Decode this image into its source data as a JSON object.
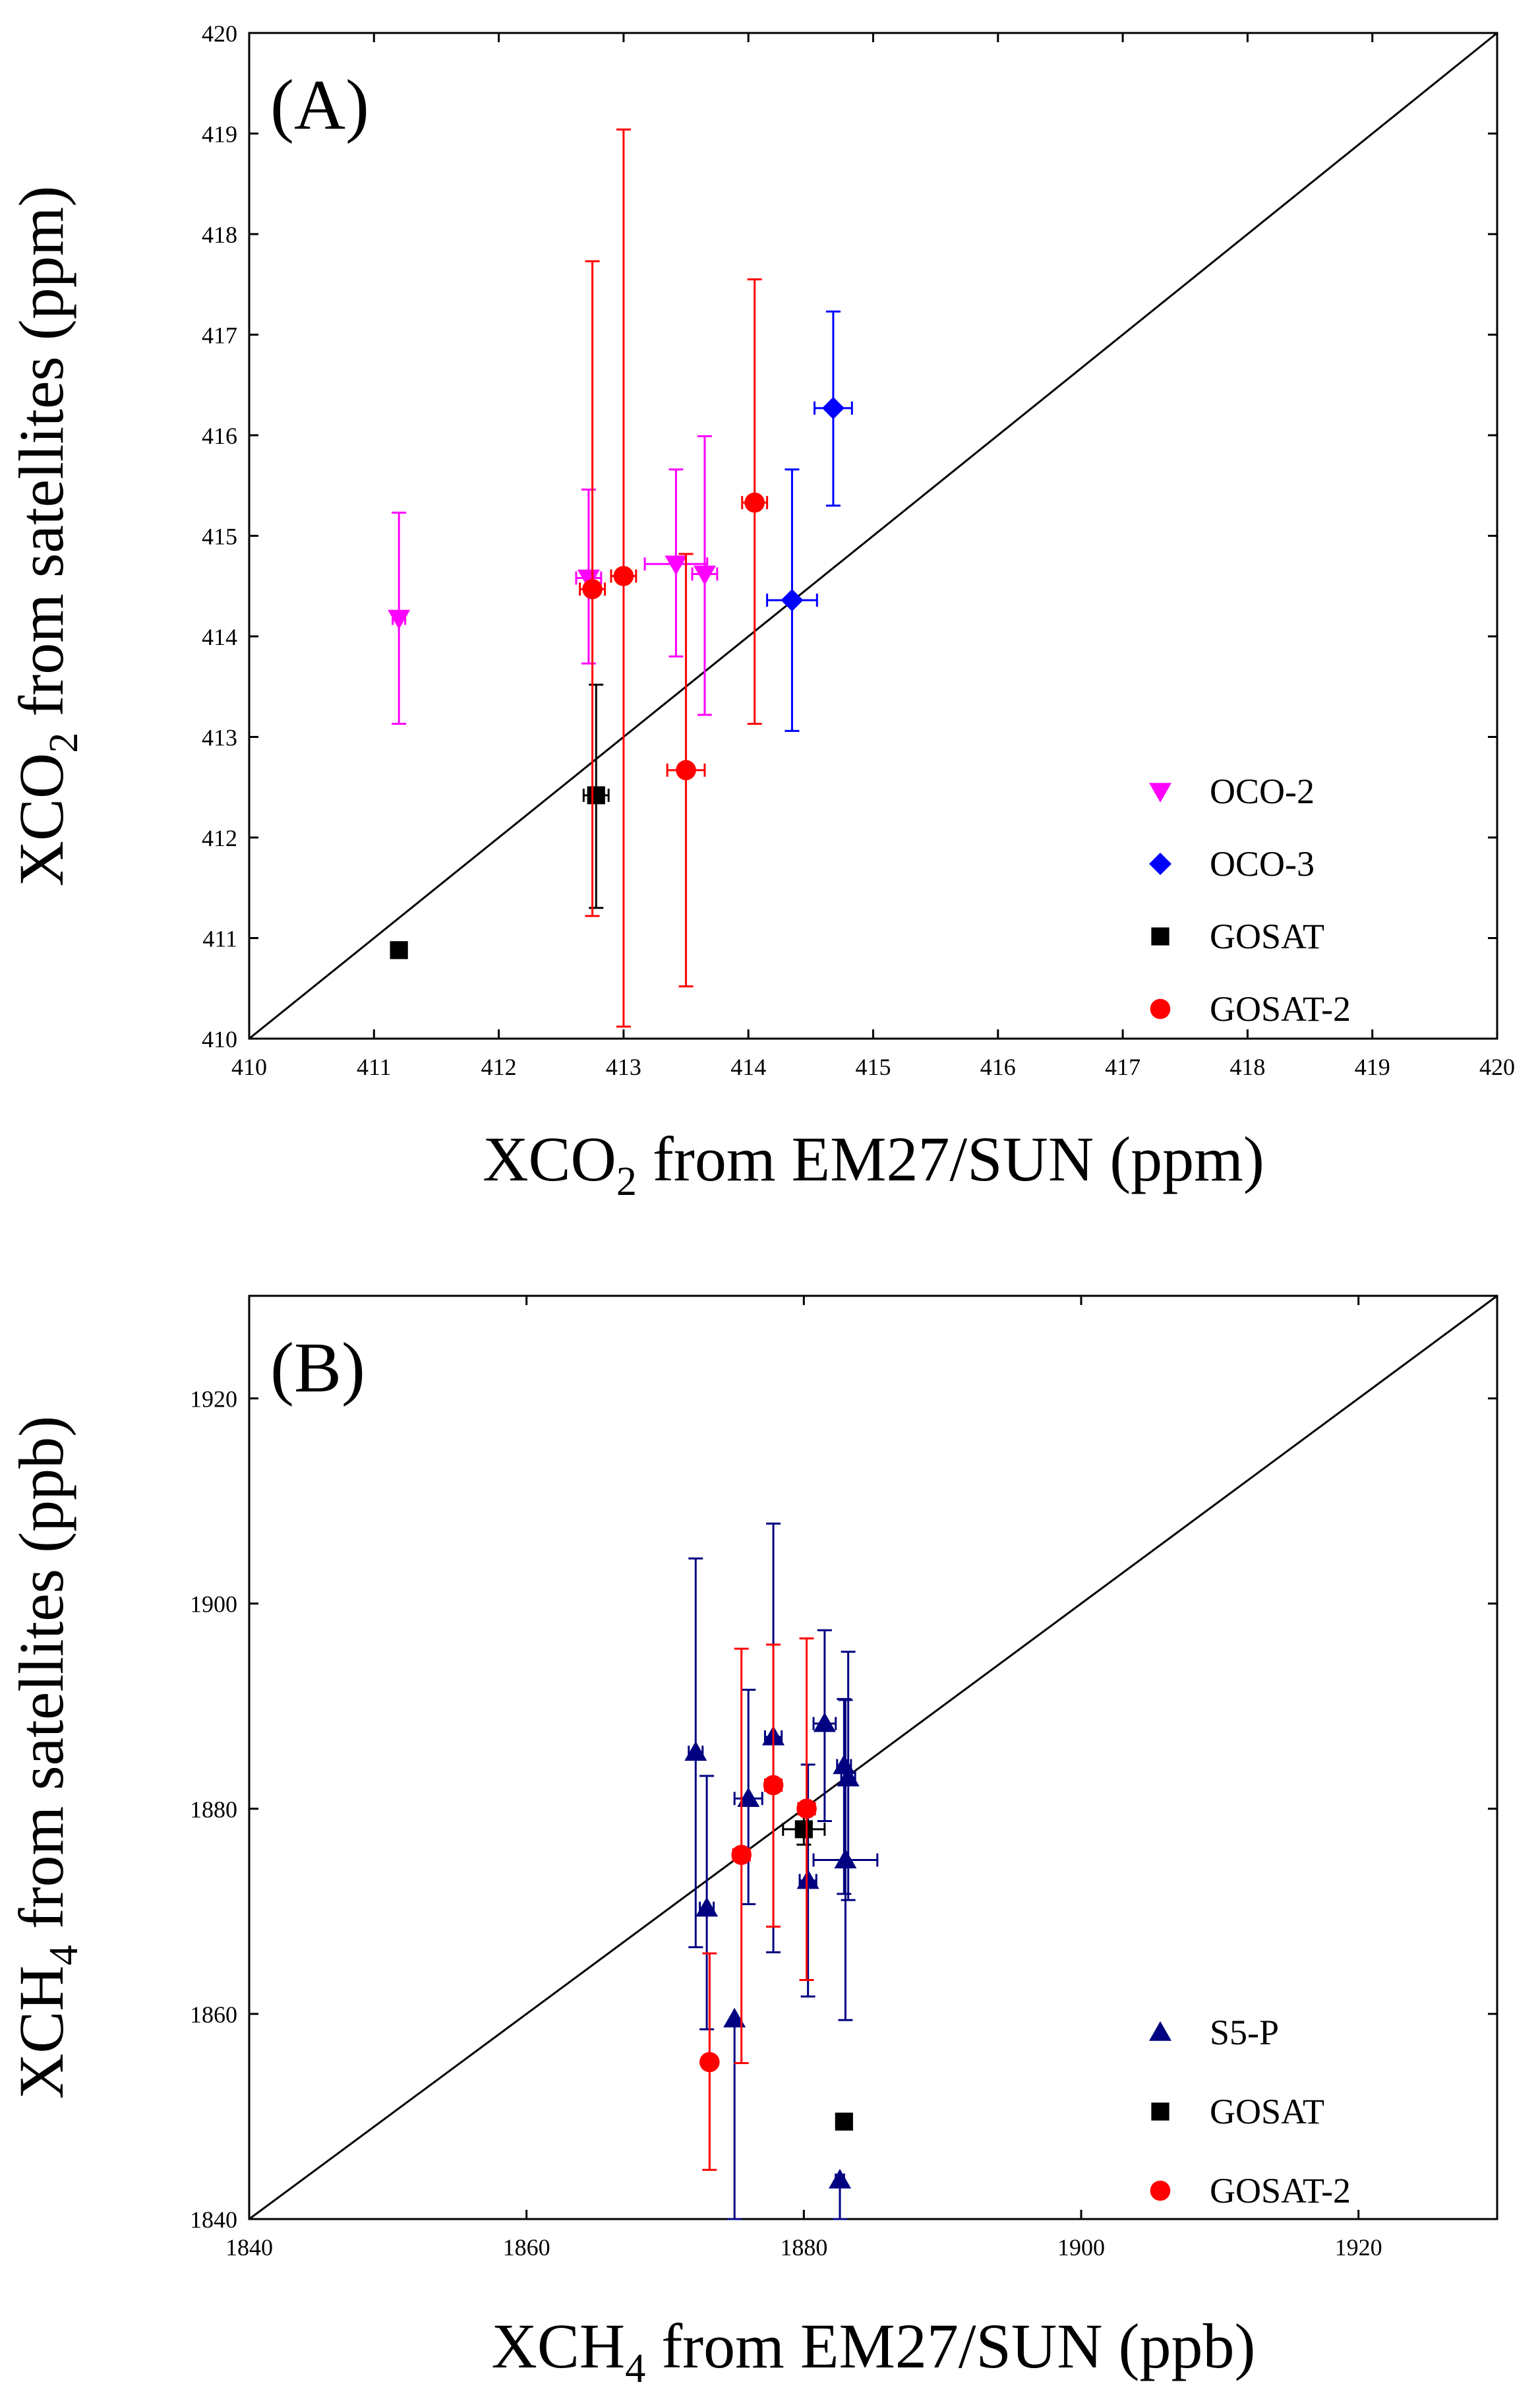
{
  "chart_data": [
    {
      "type": "scatter",
      "panel_label": "(A)",
      "xlabel": {
        "pre": "XCO",
        "sub": "2",
        "post": " from EM27/SUN (ppm)"
      },
      "ylabel": {
        "pre": "XCO",
        "sub": "2",
        "post": " from satellites (ppm)"
      },
      "xlim": [
        410,
        420
      ],
      "ylim": [
        410,
        420
      ],
      "xticks": [
        410,
        411,
        412,
        413,
        414,
        415,
        416,
        417,
        418,
        419,
        420
      ],
      "yticks": [
        410,
        411,
        412,
        413,
        414,
        415,
        416,
        417,
        418,
        419,
        420
      ],
      "reference_line": "1:1",
      "legend_position": "bottom-right",
      "series": [
        {
          "name": "OCO-2",
          "marker": "triangle-down",
          "color": "#ff00ff",
          "points": [
            {
              "x": 411.2,
              "y": 414.18,
              "xerr": 0.05,
              "yerr_low": 1.05,
              "yerr_high": 1.05
            },
            {
              "x": 412.72,
              "y": 414.58,
              "xerr": 0.1,
              "yerr_low": 0.85,
              "yerr_high": 0.88
            },
            {
              "x": 413.42,
              "y": 414.72,
              "xerr": 0.25,
              "yerr_low": 0.92,
              "yerr_high": 0.94
            },
            {
              "x": 413.65,
              "y": 414.62,
              "xerr": 0.1,
              "yerr_low": 1.4,
              "yerr_high": 1.37
            }
          ]
        },
        {
          "name": "OCO-3",
          "marker": "diamond",
          "color": "#0000ff",
          "points": [
            {
              "x": 414.35,
              "y": 414.36,
              "xerr": 0.2,
              "yerr_low": 1.3,
              "yerr_high": 1.3
            },
            {
              "x": 414.68,
              "y": 416.27,
              "xerr": 0.15,
              "yerr_low": 0.97,
              "yerr_high": 0.96
            }
          ]
        },
        {
          "name": "GOSAT",
          "marker": "square",
          "color": "#000000",
          "points": [
            {
              "x": 411.2,
              "y": 410.88,
              "xerr": 0.05,
              "yerr_low": 0.05,
              "yerr_high": 0.05
            },
            {
              "x": 412.78,
              "y": 412.42,
              "xerr": 0.1,
              "yerr_low": 1.12,
              "yerr_high": 1.1
            }
          ]
        },
        {
          "name": "GOSAT-2",
          "marker": "circle",
          "color": "#ff0000",
          "points": [
            {
              "x": 412.75,
              "y": 414.47,
              "xerr": 0.1,
              "yerr_low": 3.25,
              "yerr_high": 3.26
            },
            {
              "x": 413.0,
              "y": 414.6,
              "xerr": 0.1,
              "yerr_low": 4.48,
              "yerr_high": 4.44
            },
            {
              "x": 413.5,
              "y": 412.67,
              "xerr": 0.15,
              "yerr_low": 2.15,
              "yerr_high": 2.15
            },
            {
              "x": 414.05,
              "y": 415.33,
              "xerr": 0.1,
              "yerr_low": 2.2,
              "yerr_high": 2.22
            }
          ]
        }
      ]
    },
    {
      "type": "scatter",
      "panel_label": "(B)",
      "xlabel": {
        "pre": "XCH",
        "sub": "4",
        "post": " from EM27/SUN (ppb)"
      },
      "ylabel": {
        "pre": "XCH",
        "sub": "4",
        "post": " from satellites (ppb)"
      },
      "xlim": [
        1840,
        1930
      ],
      "ylim": [
        1840,
        1930
      ],
      "xticks": [
        1840,
        1860,
        1880,
        1900,
        1920
      ],
      "yticks": [
        1840,
        1860,
        1880,
        1900,
        1920
      ],
      "reference_line": "1:1",
      "legend_position": "bottom-right",
      "series": [
        {
          "name": "S5-P",
          "marker": "triangle-up",
          "color": "#000080",
          "points": [
            {
              "x": 1872.2,
              "y": 1885.5,
              "xerr": 0.5,
              "yerr_low": 19,
              "yerr_high": 18.9
            },
            {
              "x": 1873.0,
              "y": 1870.3,
              "xerr": 0.5,
              "yerr_low": 11.8,
              "yerr_high": 12.9
            },
            {
              "x": 1875.0,
              "y": 1859.5,
              "xerr": 0,
              "yerr_low": 19.5,
              "yerr_high": 0
            },
            {
              "x": 1876.0,
              "y": 1881.0,
              "xerr": 1.0,
              "yerr_low": 10.3,
              "yerr_high": 10.6
            },
            {
              "x": 1877.8,
              "y": 1887.0,
              "xerr": 0.6,
              "yerr_low": 21,
              "yerr_high": 20.8
            },
            {
              "x": 1880.3,
              "y": 1873.0,
              "xerr": 0.6,
              "yerr_low": 11.3,
              "yerr_high": 11.3
            },
            {
              "x": 1881.5,
              "y": 1888.3,
              "xerr": 0.8,
              "yerr_low": 9.5,
              "yerr_high": 9.1
            },
            {
              "x": 1882.6,
              "y": 1843.8,
              "xerr": 0.3,
              "yerr_low": 3.8,
              "yerr_high": 0
            },
            {
              "x": 1882.9,
              "y": 1884.2,
              "xerr": 0.5,
              "yerr_low": 12.5,
              "yerr_high": 6.5
            },
            {
              "x": 1883.2,
              "y": 1883.0,
              "xerr": 0.5,
              "yerr_low": 11.9,
              "yerr_high": 12.3
            },
            {
              "x": 1883.0,
              "y": 1875.0,
              "xerr": 2.3,
              "yerr_low": 15.6,
              "yerr_high": 15.6
            }
          ]
        },
        {
          "name": "GOSAT",
          "marker": "square",
          "color": "#000000",
          "points": [
            {
              "x": 1880.0,
              "y": 1878.0,
              "xerr": 1.5,
              "yerr_low": 1.5,
              "yerr_high": 1.5
            },
            {
              "x": 1882.9,
              "y": 1849.5,
              "xerr": 0,
              "yerr_low": 0,
              "yerr_high": 0
            }
          ]
        },
        {
          "name": "GOSAT-2",
          "marker": "circle",
          "color": "#ff0000",
          "points": [
            {
              "x": 1873.2,
              "y": 1855.3,
              "xerr": 0.3,
              "yerr_low": 10.5,
              "yerr_high": 10.6
            },
            {
              "x": 1875.5,
              "y": 1875.5,
              "xerr": 0.6,
              "yerr_low": 20.3,
              "yerr_high": 20.1
            },
            {
              "x": 1877.8,
              "y": 1882.3,
              "xerr": 0.6,
              "yerr_low": 13.8,
              "yerr_high": 13.7
            },
            {
              "x": 1880.2,
              "y": 1880.0,
              "xerr": 0.6,
              "yerr_low": 16.7,
              "yerr_high": 16.6
            }
          ]
        }
      ]
    }
  ]
}
